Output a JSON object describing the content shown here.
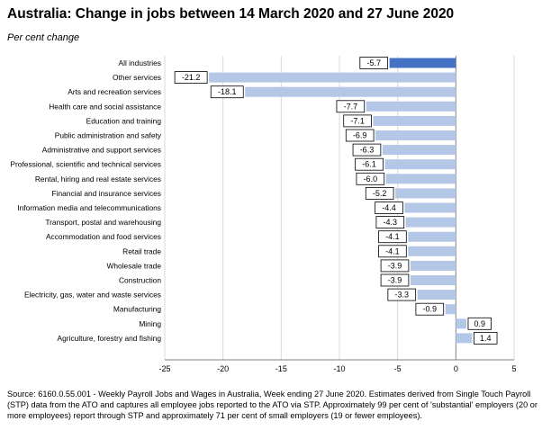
{
  "title": "Australia:  Change in jobs between 14 March 2020 and 27 June 2020",
  "subtitle": "Per cent change",
  "source": "Source: 6160.0.55.001 - Weekly Payroll Jobs and Wages in Australia, Week ending 27 June 2020.  Estimates derived from Single Touch Payroll (STP) data from the ATO and captures all employee jobs reported to the ATO via STP.  Approximately 99 per cent of 'substantial' employers (20 or more employees) report through STP and approximately 71 per cent of small employers (19 or fewer employees).",
  "colors": {
    "highlight": "#4472C4",
    "bar": "#B4C7E7",
    "grid": "#D9D9D9",
    "axis": "#808080"
  },
  "chart_data": {
    "type": "bar",
    "orientation": "horizontal",
    "title": "Australia:  Change in jobs between 14 March 2020 and 27 June 2020",
    "ylabel": "Per cent change",
    "xlim": [
      -25,
      5
    ],
    "xticks": [
      -25,
      -20,
      -15,
      -10,
      -5,
      0,
      5
    ],
    "grid": "vertical",
    "highlight_index": 0,
    "categories": [
      "All industries",
      "Other services",
      "Arts and recreation services",
      "Health care and social assistance",
      "Education and training",
      "Public administration and safety",
      "Administrative and support services",
      "Professional, scientific and technical services",
      "Rental, hiring and real estate services",
      "Financial and insurance services",
      "Information media and telecommunications",
      "Transport, postal and warehousing",
      "Accommodation and food services",
      "Retail trade",
      "Wholesale trade",
      "Construction",
      "Electricity, gas, water and waste services",
      "Manufacturing",
      "Mining",
      "Agriculture, forestry and fishing"
    ],
    "values": [
      -5.7,
      -21.2,
      -18.1,
      -7.7,
      -7.1,
      -6.9,
      -6.3,
      -6.1,
      -6.0,
      -5.2,
      -4.4,
      -4.3,
      -4.1,
      -4.1,
      -3.9,
      -3.9,
      -3.3,
      -0.9,
      0.9,
      1.4
    ],
    "labels": [
      "-5.7",
      "-21.2",
      "-18.1",
      "-7.7",
      "-7.1",
      "-6.9",
      "-6.3",
      "-6.1",
      "-6.0",
      "-5.2",
      "-4.4",
      "-4.3",
      "-4.1",
      "-4.1",
      "-3.9",
      "-3.9",
      "-3.3",
      "-0.9",
      "0.9",
      "1.4"
    ]
  }
}
